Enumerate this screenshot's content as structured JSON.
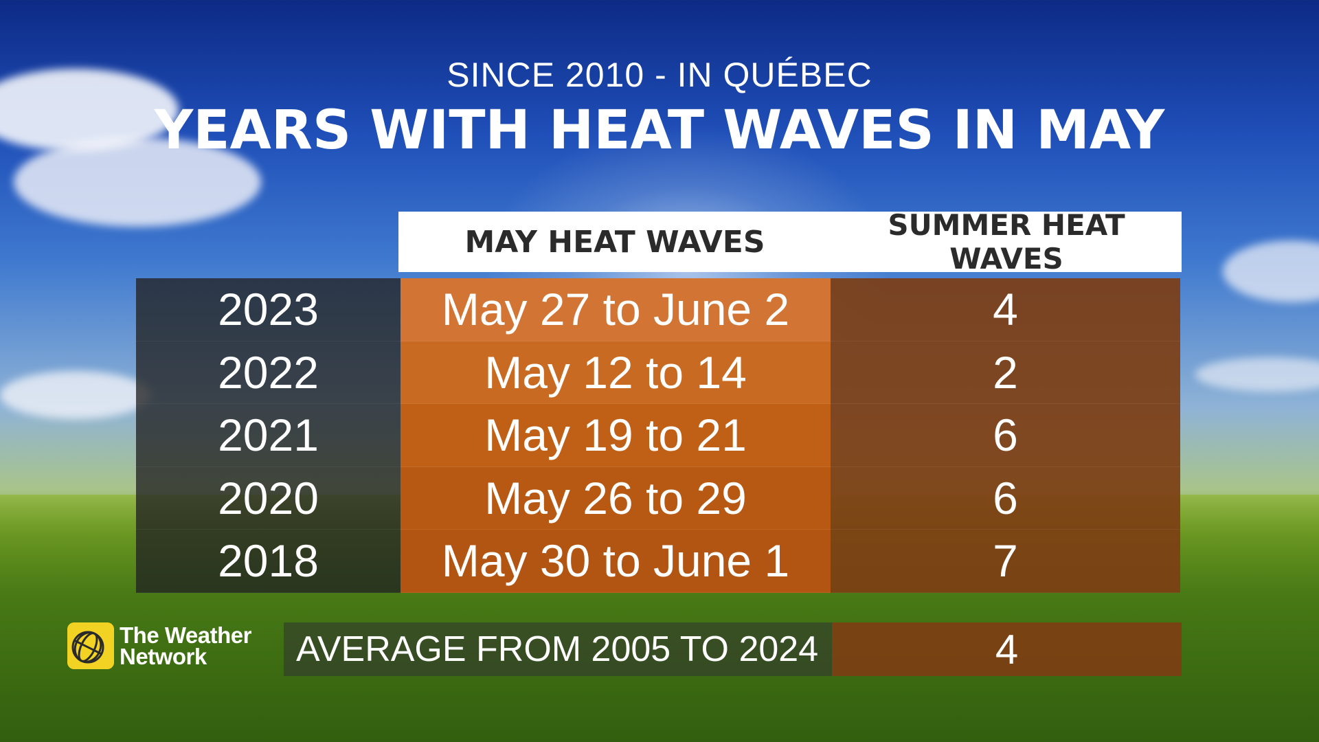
{
  "subtitle": "SINCE 2010 - IN QUÉBEC",
  "title": "YEARS WITH HEAT WAVES IN MAY",
  "table": {
    "columns": [
      "MAY HEAT WAVES",
      "SUMMER HEAT WAVES"
    ],
    "rows": [
      {
        "year": "2023",
        "may": "May 27 to June 2",
        "summer": "4"
      },
      {
        "year": "2022",
        "may": "May 12 to 14",
        "summer": "2"
      },
      {
        "year": "2021",
        "may": "May 19 to 21",
        "summer": "6"
      },
      {
        "year": "2020",
        "may": "May 26 to 29",
        "summer": "6"
      },
      {
        "year": "2018",
        "may": "May 30 to June 1",
        "summer": "7"
      }
    ]
  },
  "average": {
    "label": "AVERAGE FROM 2005 TO 2024",
    "value": "4"
  },
  "logo": {
    "line1": "The Weather",
    "line2": "Network",
    "icon": "weather-network-globe-icon"
  },
  "colors": {
    "may_column": "#c86a21",
    "summer_column": "#7d3e14",
    "logo_yellow": "#f2d323"
  }
}
